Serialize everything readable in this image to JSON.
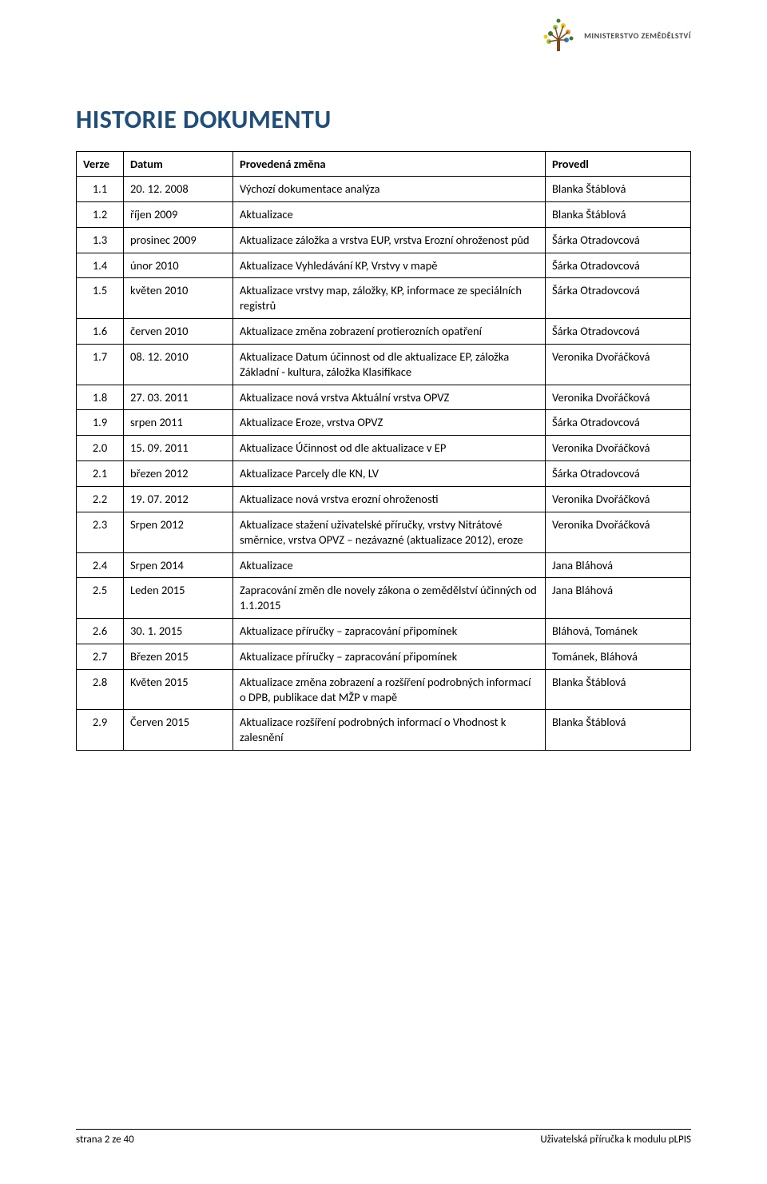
{
  "branding": {
    "ministry_label": "MINISTERSTVO ZEMĚDĚLSTVÍ",
    "logo_colors": {
      "green_dark": "#3a7a2f",
      "green_light": "#9ac13c",
      "yellow": "#f9c60d",
      "orange": "#e98b1f",
      "brown": "#7a4b1d",
      "blue": "#2d7bbf"
    }
  },
  "title": "HISTORIE DOKUMENTU",
  "title_color": "#1f4e79",
  "table": {
    "headers": {
      "verze": "Verze",
      "datum": "Datum",
      "zmena": "Provedená změna",
      "provedl": "Provedl"
    },
    "rows": [
      {
        "verze": "1.1",
        "datum": "20. 12. 2008",
        "zmena": "Výchozí dokumentace analýza",
        "provedl": "Blanka Štáblová"
      },
      {
        "verze": "1.2",
        "datum": "říjen 2009",
        "zmena": "Aktualizace",
        "provedl": "Blanka Štáblová"
      },
      {
        "verze": "1.3",
        "datum": "prosinec 2009",
        "zmena": "Aktualizace záložka a vrstva EUP, vrstva Erozní ohroženost půd",
        "provedl": "Šárka Otradovcová"
      },
      {
        "verze": "1.4",
        "datum": "únor 2010",
        "zmena": "Aktualizace Vyhledávání KP, Vrstvy v mapě",
        "provedl": "Šárka Otradovcová"
      },
      {
        "verze": "1.5",
        "datum": "květen 2010",
        "zmena": "Aktualizace vrstvy map, záložky, KP, informace ze speciálních registrů",
        "provedl": "Šárka Otradovcová"
      },
      {
        "verze": "1.6",
        "datum": "červen 2010",
        "zmena": "Aktualizace změna zobrazení protierozních opatření",
        "provedl": "Šárka Otradovcová"
      },
      {
        "verze": "1.7",
        "datum": "08. 12. 2010",
        "zmena": "Aktualizace Datum účinnost od dle aktualizace EP, záložka Základní - kultura, záložka Klasifikace",
        "provedl": "Veronika Dvořáčková"
      },
      {
        "verze": "1.8",
        "datum": "27. 03. 2011",
        "zmena": "Aktualizace nová vrstva Aktuální vrstva OPVZ",
        "provedl": "Veronika Dvořáčková"
      },
      {
        "verze": "1.9",
        "datum": "srpen 2011",
        "zmena": "Aktualizace Eroze, vrstva OPVZ",
        "provedl": "Šárka Otradovcová"
      },
      {
        "verze": "2.0",
        "datum": "15. 09. 2011",
        "zmena": "Aktualizace Účinnost od dle aktualizace v EP",
        "provedl": "Veronika Dvořáčková"
      },
      {
        "verze": "2.1",
        "datum": "březen 2012",
        "zmena": "Aktualizace Parcely dle KN, LV",
        "provedl": "Šárka Otradovcová"
      },
      {
        "verze": "2.2",
        "datum": "19. 07. 2012",
        "zmena": "Aktualizace nová vrstva erozní ohroženosti",
        "provedl": "Veronika Dvořáčková"
      },
      {
        "verze": "2.3",
        "datum": "Srpen 2012",
        "zmena": "Aktualizace stažení uživatelské příručky, vrstvy Nitrátové směrnice, vrstva OPVZ – nezávazné (aktualizace 2012), eroze",
        "provedl": "Veronika Dvořáčková"
      },
      {
        "verze": "2.4",
        "datum": "Srpen 2014",
        "zmena": "Aktualizace",
        "provedl": "Jana Bláhová"
      },
      {
        "verze": "2.5",
        "datum": "Leden 2015",
        "zmena": "Zapracování změn dle novely zákona o zemědělství účinných od 1.1.2015",
        "provedl": "Jana Bláhová"
      },
      {
        "verze": "2.6",
        "datum": "30. 1. 2015",
        "zmena": "Aktualizace příručky – zapracování připomínek",
        "provedl": "Bláhová, Tománek"
      },
      {
        "verze": "2.7",
        "datum": "Březen 2015",
        "zmena": "Aktualizace příručky – zapracování připomínek",
        "provedl": "Tománek, Bláhová"
      },
      {
        "verze": "2.8",
        "datum": "Květen 2015",
        "zmena": "Aktualizace změna zobrazení a rozšíření podrobných informací o DPB, publikace dat MŽP v mapě",
        "provedl": "Blanka Štáblová"
      },
      {
        "verze": "2.9",
        "datum": "Červen 2015",
        "zmena": "Aktualizace rozšíření podrobných informací o Vhodnost k zalesnění",
        "provedl": "Blanka Štáblová"
      }
    ]
  },
  "footer": {
    "left": "strana 2 ze 40",
    "right": "Uživatelská příručka k modulu pLPIS"
  }
}
